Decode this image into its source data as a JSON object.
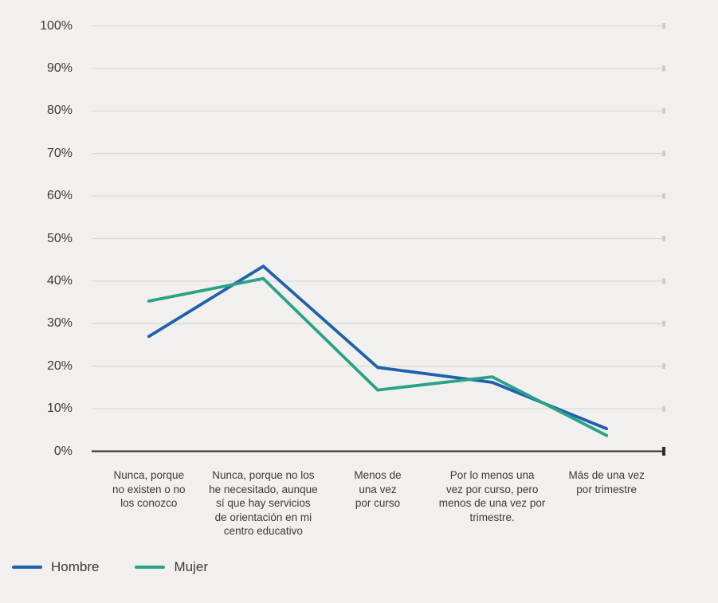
{
  "colors": {
    "background": "#f1f0ee",
    "gridline": "#dcdad7",
    "grid_tick": "#cfccc9",
    "axis": "#2f2d2b",
    "text": "#3c3a38"
  },
  "chart_data": {
    "type": "line",
    "title": "",
    "xlabel": "",
    "ylabel": "",
    "ylim": [
      0,
      100
    ],
    "grid": true,
    "legend_position": "bottom-left",
    "y_tick_labels": [
      "100%",
      "90%",
      "80%",
      "70%",
      "60%",
      "50%",
      "40%",
      "30%",
      "20%",
      "10%",
      "0%"
    ],
    "categories": [
      "Nunca, porque\nno existen o no\nlos conozco",
      "Nunca, porque no los\nhe necesitado, aunque\nsí que hay servicios\nde orientación en mi\ncentro educativo",
      "Menos de\nuna vez\npor curso",
      "Por lo menos una\nvez por curso, pero\nmenos de una vez por\ntrimestre.",
      "Más de una vez\npor trimestre"
    ],
    "series": [
      {
        "name": "Hombre",
        "color": "#1f61ab",
        "values": [
          27,
          43.5,
          19.7,
          16.2,
          5.3
        ]
      },
      {
        "name": "Mujer",
        "color": "#2aa287",
        "values": [
          35.3,
          40.6,
          14.4,
          17.5,
          3.7
        ]
      }
    ]
  }
}
